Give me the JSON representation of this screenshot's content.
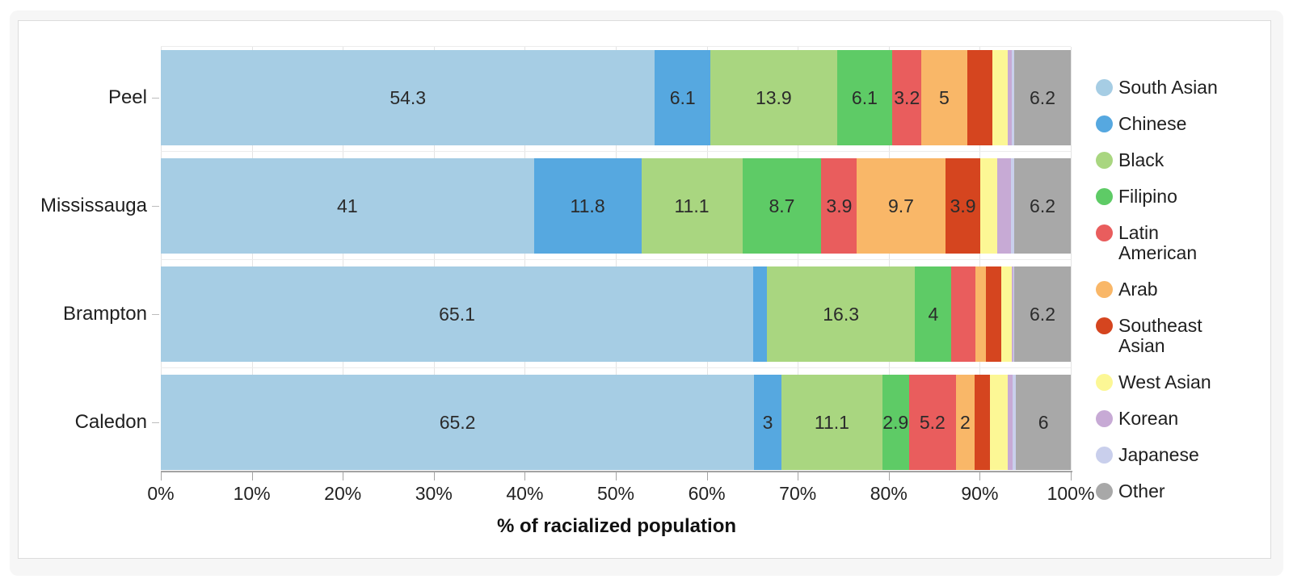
{
  "chart_data": {
    "type": "bar",
    "subtype": "horizontal-stacked",
    "categories": [
      "Peel",
      "Mississauga",
      "Brampton",
      "Caledon"
    ],
    "series": [
      {
        "name": "South Asian",
        "color": "#a6cde4",
        "values": [
          54.3,
          41.0,
          65.1,
          65.2
        ],
        "labels": [
          "54.3",
          "41",
          "65.1",
          "65.2"
        ]
      },
      {
        "name": "Chinese",
        "color": "#56a8e0",
        "values": [
          6.1,
          11.8,
          1.5,
          3.0
        ],
        "labels": [
          "6.1",
          "11.8",
          "",
          "3"
        ]
      },
      {
        "name": "Black",
        "color": "#a9d680",
        "values": [
          13.9,
          11.1,
          16.3,
          11.1
        ],
        "labels": [
          "13.9",
          "11.1",
          "16.3",
          "11.1"
        ]
      },
      {
        "name": "Filipino",
        "color": "#5ecb66",
        "values": [
          6.1,
          8.7,
          4.0,
          2.9
        ],
        "labels": [
          "6.1",
          "8.7",
          "4",
          "2.9"
        ]
      },
      {
        "name": "Latin American",
        "color": "#e95d5d",
        "values": [
          3.2,
          3.9,
          2.6,
          5.2
        ],
        "labels": [
          "3.2",
          "3.9",
          "",
          "5.2"
        ]
      },
      {
        "name": "Arab",
        "color": "#f9b768",
        "values": [
          5.0,
          9.7,
          1.2,
          2.0
        ],
        "labels": [
          "5",
          "9.7",
          "",
          "2"
        ]
      },
      {
        "name": "Southeast Asian",
        "color": "#d5451f",
        "values": [
          2.8,
          3.9,
          1.7,
          1.7
        ],
        "labels": [
          "",
          "3.9",
          "",
          ""
        ]
      },
      {
        "name": "West Asian",
        "color": "#fcf795",
        "values": [
          1.7,
          1.8,
          1.1,
          2.0
        ],
        "labels": [
          "",
          "",
          "",
          ""
        ]
      },
      {
        "name": "Korean",
        "color": "#c7aad5",
        "values": [
          0.4,
          1.5,
          0.2,
          0.5
        ],
        "labels": [
          "",
          "",
          "",
          ""
        ]
      },
      {
        "name": "Japanese",
        "color": "#c9cfec",
        "values": [
          0.3,
          0.4,
          0.1,
          0.4
        ],
        "labels": [
          "",
          "",
          "",
          ""
        ]
      },
      {
        "name": "Other",
        "color": "#a8a8a8",
        "values": [
          6.2,
          6.2,
          6.2,
          6.0
        ],
        "labels": [
          "6.2",
          "6.2",
          "6.2",
          "6"
        ]
      }
    ],
    "xlabel": "% of racialized population",
    "x_ticks": [
      "0%",
      "10%",
      "20%",
      "30%",
      "40%",
      "50%",
      "60%",
      "70%",
      "80%",
      "90%",
      "100%"
    ],
    "x_tick_values": [
      0,
      10,
      20,
      30,
      40,
      50,
      60,
      70,
      80,
      90,
      100
    ],
    "xlim": [
      0,
      100
    ],
    "grid": true,
    "legend_position": "right"
  },
  "layout_colors": {
    "card_background": "#f6f6f6",
    "panel_background": "#ffffff",
    "gridline": "#e4e4e4",
    "axis_line": "#a3a3a3",
    "text": "#1f1f1f"
  }
}
